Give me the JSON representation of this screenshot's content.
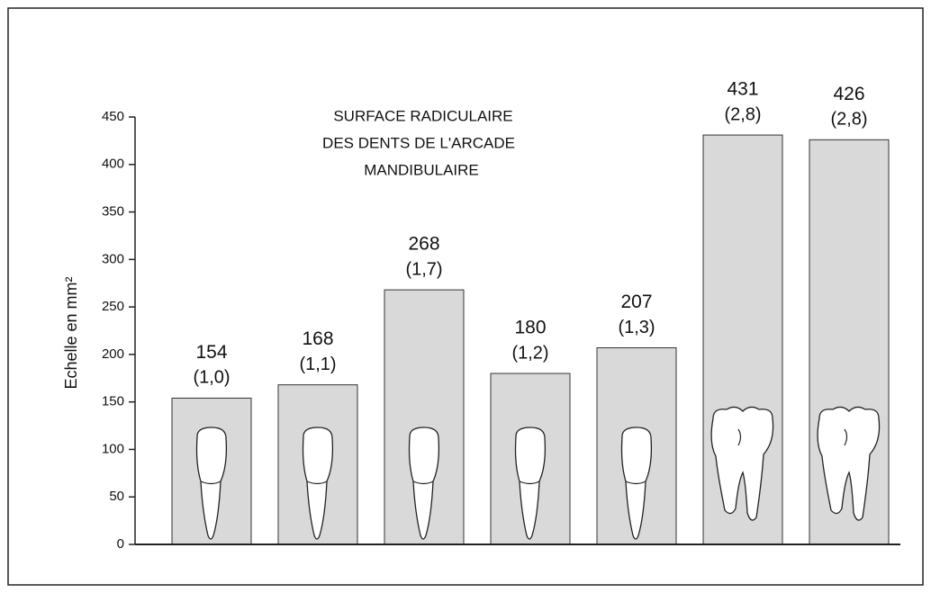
{
  "chart_data": {
    "type": "bar",
    "title": [
      "SURFACE RADICULAIRE",
      "DES DENTS DE L'ARCADE",
      "MANDIBULAIRE"
    ],
    "y_label": "Echelle en mm²",
    "categories": [
      null,
      null,
      null,
      null,
      null,
      null,
      null
    ],
    "values": [
      154,
      168,
      268,
      180,
      207,
      431,
      426
    ],
    "ratio_labels": [
      "(1,0)",
      "(1,1)",
      "(1,7)",
      "(1,2)",
      "(1,3)",
      "(2,8)",
      "(2,8)"
    ],
    "color": "#d9d9d9",
    "ylim": [
      0,
      450
    ],
    "yticks": [
      0,
      50,
      100,
      150,
      200,
      250,
      300,
      350,
      400,
      450
    ]
  }
}
